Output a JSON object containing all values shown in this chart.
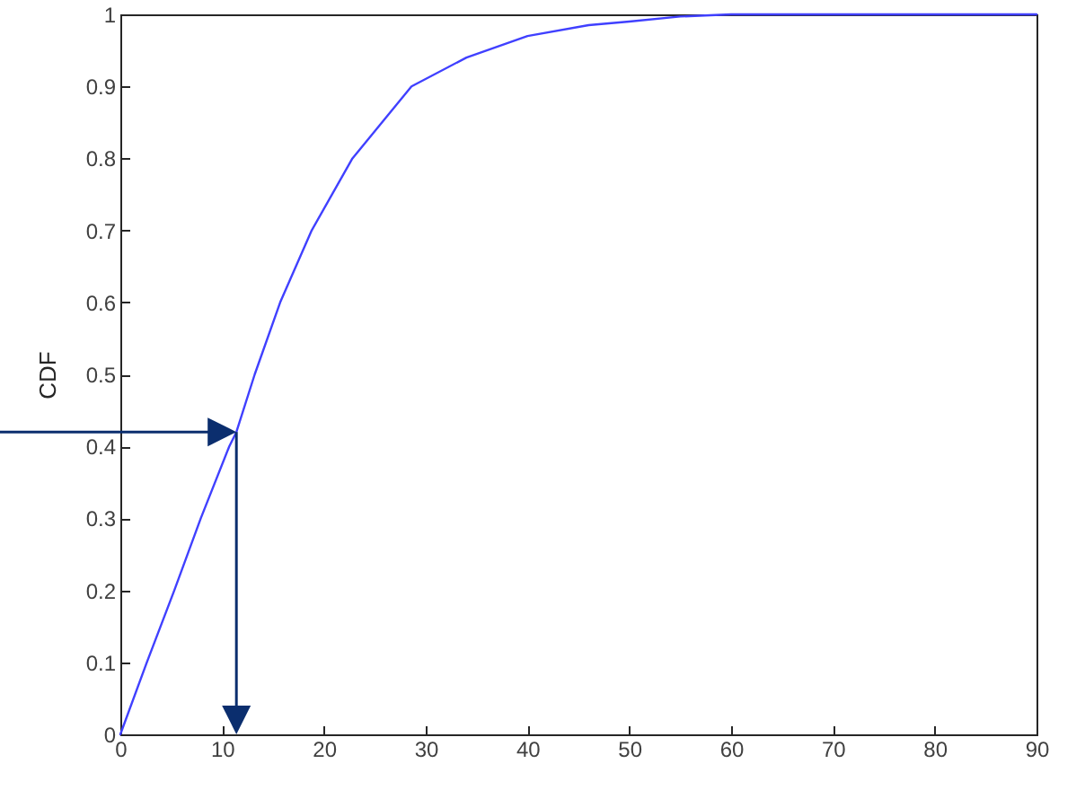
{
  "chart_data": {
    "type": "line",
    "ylabel": "CDF",
    "x": [
      0,
      2.6,
      5.3,
      7.9,
      10.7,
      11.4,
      13.2,
      15.7,
      18.8,
      22.8,
      28.6,
      34,
      40,
      46,
      50,
      55,
      60,
      70,
      80,
      90
    ],
    "series": [
      {
        "color": "#4040ff",
        "values": [
          0,
          0.1,
          0.2,
          0.3,
          0.4,
          0.42,
          0.5,
          0.6,
          0.7,
          0.8,
          0.9,
          0.94,
          0.97,
          0.985,
          0.99,
          0.997,
          1,
          1,
          1,
          1
        ]
      }
    ],
    "xlim": [
      0,
      90
    ],
    "xticks": [
      0,
      10,
      20,
      30,
      40,
      50,
      60,
      70,
      80,
      90
    ],
    "ylim": [
      0,
      1
    ],
    "yticks": [
      0,
      0.1,
      0.2,
      0.3,
      0.4,
      0.5,
      0.6,
      0.7,
      0.8,
      0.9,
      1
    ],
    "grid": false,
    "marker": "none",
    "line_style": "solid"
  }
}
